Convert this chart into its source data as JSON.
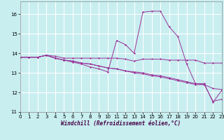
{
  "xlabel": "Windchill (Refroidissement éolien,°C)",
  "background_color": "#c8eef0",
  "grid_color": "#ffffff",
  "line_color": "#993399",
  "xlim": [
    0,
    23
  ],
  "ylim": [
    11,
    16.65
  ],
  "yticks": [
    11,
    12,
    13,
    14,
    15,
    16
  ],
  "xticks": [
    0,
    1,
    2,
    3,
    4,
    5,
    6,
    7,
    8,
    9,
    10,
    11,
    12,
    13,
    14,
    15,
    16,
    17,
    18,
    19,
    20,
    21,
    22,
    23
  ],
  "s1_x": [
    0,
    1,
    2,
    3,
    4,
    5,
    6,
    7,
    8,
    9,
    10,
    11,
    12,
    13,
    14,
    15,
    16,
    17,
    18,
    19,
    20,
    21,
    22,
    23
  ],
  "s1_y": [
    13.8,
    13.8,
    13.8,
    13.9,
    13.85,
    13.75,
    13.75,
    13.75,
    13.75,
    13.75,
    13.75,
    13.75,
    13.7,
    13.6,
    13.7,
    13.7,
    13.7,
    13.65,
    13.65,
    13.65,
    13.65,
    13.5,
    13.5,
    13.5
  ],
  "s2_x": [
    0,
    1,
    2,
    3,
    4,
    5,
    6,
    7,
    8,
    9,
    10,
    11,
    12,
    13,
    14,
    15,
    16,
    17,
    18,
    19,
    20,
    21,
    22,
    23
  ],
  "s2_y": [
    13.8,
    13.8,
    13.8,
    13.9,
    13.75,
    13.65,
    13.6,
    13.5,
    13.45,
    13.35,
    13.25,
    13.2,
    13.1,
    13.05,
    13.0,
    12.9,
    12.85,
    12.75,
    12.65,
    12.55,
    12.45,
    12.4,
    12.2,
    12.15
  ],
  "s3_x": [
    0,
    1,
    2,
    3,
    4,
    5,
    6,
    7,
    8,
    9,
    10,
    11,
    12,
    13,
    14,
    15,
    16,
    17,
    18,
    19,
    20,
    21,
    22,
    23
  ],
  "s3_y": [
    13.8,
    13.8,
    13.8,
    13.9,
    13.75,
    13.65,
    13.6,
    13.5,
    13.45,
    13.35,
    13.25,
    13.2,
    13.1,
    13.0,
    12.95,
    12.85,
    12.8,
    12.7,
    12.6,
    12.5,
    12.4,
    12.4,
    11.55,
    11.65
  ],
  "s4_x": [
    0,
    1,
    2,
    3,
    4,
    5,
    6,
    7,
    8,
    9,
    10,
    11,
    12,
    13,
    14,
    15,
    16,
    17,
    18,
    19,
    20,
    21,
    22,
    23
  ],
  "s4_y": [
    13.8,
    13.8,
    13.8,
    13.9,
    13.75,
    13.65,
    13.55,
    13.45,
    13.3,
    13.2,
    13.05,
    14.65,
    14.45,
    14.0,
    16.1,
    16.15,
    16.15,
    15.35,
    14.85,
    13.45,
    12.45,
    12.45,
    11.5,
    12.1
  ]
}
